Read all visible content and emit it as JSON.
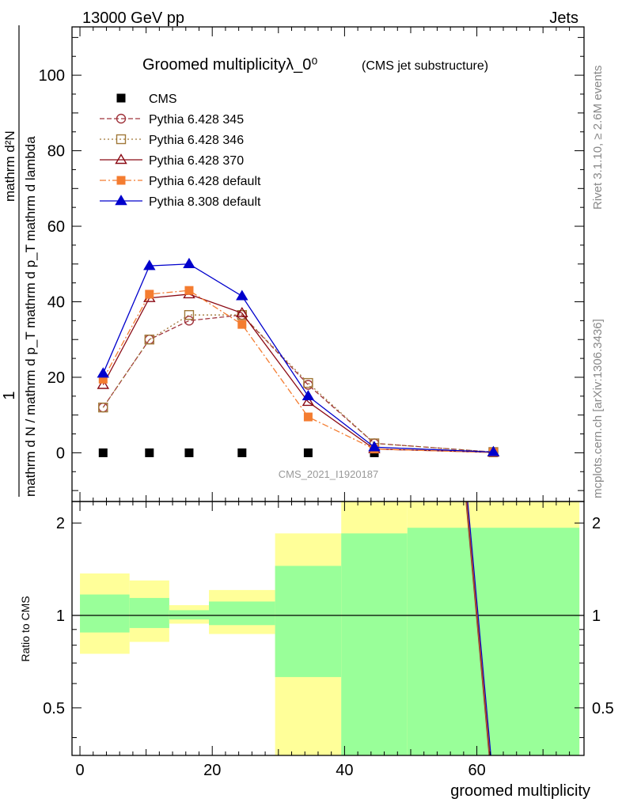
{
  "header": {
    "energy_label": "13000 GeV pp",
    "process_label": "Jets"
  },
  "side": {
    "rivet_label": "Rivet 3.1.10, ≥ 2.6M events",
    "mcplots_label": "mcplots.cern.ch [arXiv:1306.3436]"
  },
  "chart_data": {
    "type": "line",
    "title": "Groomed multiplicityλ_0⁰",
    "title_suffix": "(CMS jet substructure)",
    "watermark": "CMS_2021_I1920187",
    "xlabel": "groomed multiplicity",
    "ylabel_main": {
      "numerator": "1",
      "denominator": "mathrm d N / mathrm d p_T mathrm d p_T mathrm d lambda",
      "rhs": "mathrm d²N"
    },
    "ylabel_ratio": "Ratio to CMS",
    "xlim": [
      -1.2,
      76.2
    ],
    "ylim_main": [
      -12.9,
      112.8
    ],
    "ylim_ratio_log": [
      0.35,
      2.35
    ],
    "x_ticks": [
      0,
      20,
      40,
      60
    ],
    "y_ticks_main": [
      0,
      20,
      40,
      60,
      80,
      100
    ],
    "y_ticks_ratio": [
      0.5,
      1,
      2
    ],
    "x": [
      3.5,
      10.5,
      16.5,
      24.5,
      34.5,
      44.5,
      62.5
    ],
    "x_bins": [
      [
        0,
        7.5
      ],
      [
        7.5,
        13.5
      ],
      [
        13.5,
        19.5
      ],
      [
        19.5,
        29.5
      ],
      [
        29.5,
        39.5
      ],
      [
        39.5,
        49.5
      ],
      [
        49.5,
        75.5
      ]
    ],
    "legend_position": "top-left",
    "series": [
      {
        "name": "CMS",
        "values": [
          0,
          0,
          0,
          0,
          0,
          0,
          0
        ],
        "color": "#000000",
        "style": "points",
        "marker": "square-filled"
      },
      {
        "name": "Pythia 6.428 345",
        "values": [
          12,
          30,
          35,
          36.5,
          18,
          2.5,
          0.2
        ],
        "color": "#a0343c",
        "style": "dashed",
        "marker": "circle-open"
      },
      {
        "name": "Pythia 6.428 346",
        "values": [
          12,
          30,
          36.5,
          36.5,
          18.5,
          2.5,
          0.2
        ],
        "color": "#a07838",
        "style": "dotted",
        "marker": "square-open"
      },
      {
        "name": "Pythia 6.428 370",
        "values": [
          18,
          41,
          42,
          37,
          13.5,
          1.0,
          0.1
        ],
        "color": "#8b0a14",
        "style": "solid",
        "marker": "triangle-open"
      },
      {
        "name": "Pythia 6.428 default",
        "values": [
          19.5,
          42,
          43,
          34,
          9.5,
          1.0,
          0.1
        ],
        "color": "#f47c30",
        "style": "dashdot",
        "marker": "square-filled"
      },
      {
        "name": "Pythia 8.308 default",
        "values": [
          21,
          49.5,
          50,
          41.5,
          15,
          1.5,
          0.2
        ],
        "color": "#0000cc",
        "style": "solid",
        "marker": "triangle-filled"
      }
    ],
    "uncertainty_bands": {
      "outer_color": "#ffff99",
      "inner_color": "#99ff99",
      "outer": [
        [
          0.75,
          1.37
        ],
        [
          0.82,
          1.3
        ],
        [
          0.94,
          1.08
        ],
        [
          0.87,
          1.21
        ],
        [
          0.35,
          1.85
        ],
        [
          0.35,
          2.35
        ],
        [
          0.35,
          2.35
        ]
      ],
      "inner": [
        [
          0.88,
          1.17
        ],
        [
          0.91,
          1.14
        ],
        [
          0.97,
          1.04
        ],
        [
          0.93,
          1.11
        ],
        [
          0.63,
          1.45
        ],
        [
          0.35,
          1.85
        ],
        [
          0.35,
          1.93
        ]
      ]
    },
    "ratio_line": {
      "x": [
        58.5,
        62
      ],
      "y": [
        2.35,
        0.35
      ]
    }
  }
}
